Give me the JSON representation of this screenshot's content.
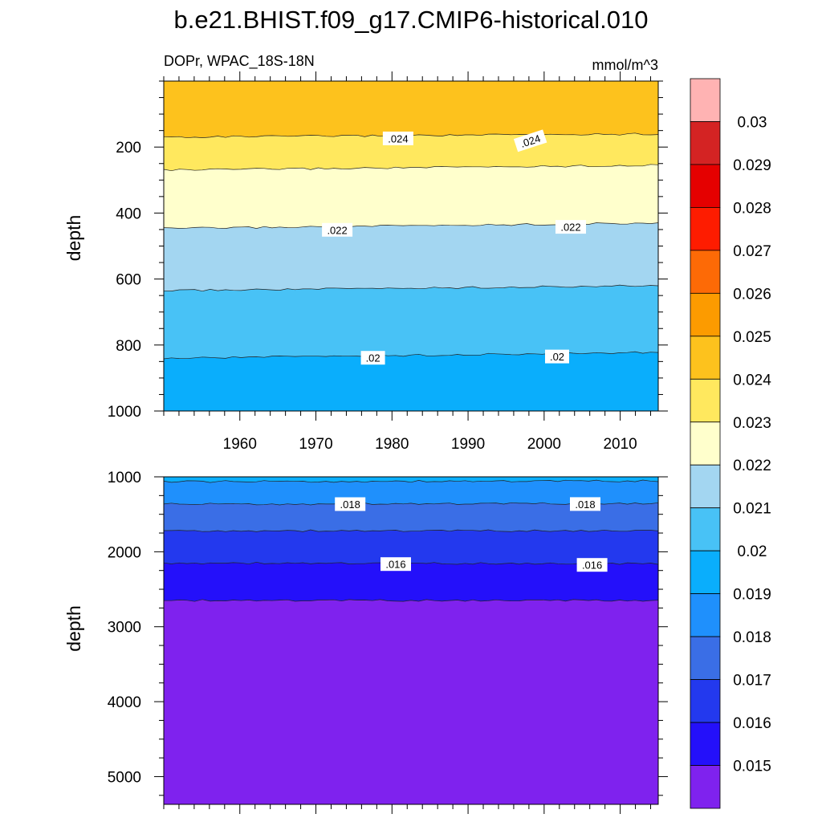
{
  "title": "b.e21.BHIST.f09_g17.CMIP6-historical.010",
  "chart_data": {
    "type": "heatmap",
    "variable_label": "DOPr, WPAC_18S-18N",
    "units": "mmol/m^3",
    "x_range": [
      1950,
      2015
    ],
    "x_ticks": [
      1960,
      1970,
      1980,
      1990,
      2000,
      2010
    ],
    "x_tick_labels": [
      "1960",
      "1970",
      "1980",
      "1990",
      "2000",
      "2010"
    ],
    "colorbar": {
      "levels": [
        0.015,
        0.016,
        0.017,
        0.018,
        0.019,
        0.02,
        0.021,
        0.022,
        0.023,
        0.024,
        0.025,
        0.026,
        0.027,
        0.028,
        0.029,
        0.03
      ],
      "level_labels": [
        "0.015",
        "0.016",
        "0.017",
        "0.018",
        "0.019",
        "0.02",
        "0.021",
        "0.022",
        "0.023",
        "0.024",
        "0.025",
        "0.026",
        "0.027",
        "0.028",
        "0.029",
        "0.03"
      ],
      "colors": [
        "#7f22ee",
        "#2410fa",
        "#2339ee",
        "#3a6ee6",
        "#1f90fc",
        "#0aaefc",
        "#48c2f6",
        "#a3d6f1",
        "#ffffcc",
        "#ffe85e",
        "#fdc21d",
        "#fc9b00",
        "#fd6a06",
        "#fe1c00",
        "#e50000",
        "#d42323",
        "#ffb3b3"
      ]
    },
    "panels": [
      {
        "ylabel": "depth",
        "ylim": [
          0,
          1000
        ],
        "y_ticks": [
          200,
          400,
          600,
          800,
          1000
        ],
        "y_tick_labels": [
          "200",
          "400",
          "600",
          "800",
          "1000"
        ],
        "contours": [
          {
            "level": 0.024,
            "depth_start": 170,
            "depth_end": 160,
            "label": ".024"
          },
          {
            "level": 0.023,
            "depth_start": 270,
            "depth_end": 255,
            "label": ""
          },
          {
            "level": 0.022,
            "depth_start": 447,
            "depth_end": 430,
            "label": ".022"
          },
          {
            "level": 0.021,
            "depth_start": 635,
            "depth_end": 620,
            "label": ""
          },
          {
            "level": 0.02,
            "depth_start": 840,
            "depth_end": 822,
            "label": ".02"
          }
        ],
        "contour_labels": [
          {
            "text": ".024",
            "year": 1980.8,
            "depth": 175,
            "angle": 0
          },
          {
            "text": ".024",
            "year": 1998.2,
            "depth": 182,
            "angle": -18
          },
          {
            "text": ".022",
            "year": 1972.8,
            "depth": 452,
            "angle": 0
          },
          {
            "text": ".022",
            "year": 2003.5,
            "depth": 443,
            "angle": 0
          },
          {
            "text": ".02",
            "year": 1977.5,
            "depth": 840,
            "angle": 0
          },
          {
            "text": ".02",
            "year": 2001.7,
            "depth": 836,
            "angle": 0
          }
        ]
      },
      {
        "ylabel": "depth",
        "ylim": [
          1000,
          5370
        ],
        "y_ticks": [
          1000,
          2000,
          3000,
          4000,
          5000
        ],
        "y_tick_labels": [
          "1000",
          "2000",
          "3000",
          "4000",
          "5000"
        ],
        "contours": [
          {
            "level": 0.019,
            "depth_start": 1065,
            "depth_end": 1055,
            "label": ""
          },
          {
            "level": 0.018,
            "depth_start": 1365,
            "depth_end": 1355,
            "label": ".018"
          },
          {
            "level": 0.017,
            "depth_start": 1720,
            "depth_end": 1720,
            "label": ""
          },
          {
            "level": 0.016,
            "depth_start": 2150,
            "depth_end": 2160,
            "label": ".016"
          },
          {
            "level": 0.015,
            "depth_start": 2650,
            "depth_end": 2650,
            "label": ""
          }
        ],
        "contour_labels": [
          {
            "text": ".018",
            "year": 1974.5,
            "depth": 1370,
            "angle": 0
          },
          {
            "text": ".018",
            "year": 2005.4,
            "depth": 1368,
            "angle": 0
          },
          {
            "text": ".016",
            "year": 1980.5,
            "depth": 2170,
            "angle": 0
          },
          {
            "text": ".016",
            "year": 2006.3,
            "depth": 2180,
            "angle": 0
          }
        ]
      }
    ]
  }
}
